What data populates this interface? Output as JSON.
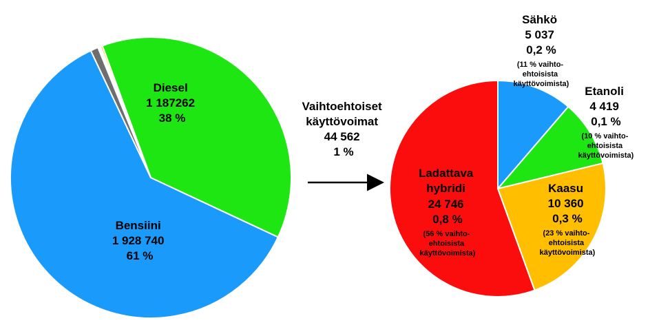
{
  "chart_data": [
    {
      "type": "pie",
      "slices": [
        {
          "name": "Bensiini",
          "value_text": "1 928 740",
          "pct_text": "61 %",
          "value": 1928740,
          "color": "#1a9bfc"
        },
        {
          "name": "Diesel",
          "value_text": "1 187262",
          "pct_text": "38 %",
          "value": 1187262,
          "color": "#1ee612"
        },
        {
          "name": "",
          "value": 7000,
          "color": "#ffd200"
        },
        {
          "name": "",
          "value": 5000,
          "color": "#ee1f8a"
        },
        {
          "name": "",
          "value": 5000,
          "color": "#c8c8c8"
        },
        {
          "name": "",
          "value": 28000,
          "color": "#6e6e6e"
        }
      ]
    },
    {
      "type": "pie",
      "title_lines": [
        "Vaihtoehtoiset",
        "käyttövoimat",
        "44 562",
        "1 %"
      ],
      "slices": [
        {
          "name": "Sähkö",
          "value_text": "5 037",
          "pct_text": "0,2 %",
          "note_lines": [
            "(11 % vaihto-",
            "ehtoisista",
            "käyttövoimista)"
          ],
          "value": 5037,
          "color": "#1a9bfc"
        },
        {
          "name": "Etanoli",
          "value_text": "4 419",
          "pct_text": "0,1 %",
          "note_lines": [
            "(10 % vaihto-",
            "ehtoisista",
            "käyttövoimista)"
          ],
          "value": 4419,
          "color": "#1ee612"
        },
        {
          "name": "Kaasu",
          "value_text": "10 360",
          "pct_text": "0,3 %",
          "note_lines": [
            "(23 % vaihto-",
            "ehtoisista",
            "käyttövoimista)"
          ],
          "value": 10360,
          "color": "#ffbf00"
        },
        {
          "name_lines": [
            "Ladattava",
            "hybridi"
          ],
          "value_text": "24 746",
          "pct_text": "0,8 %",
          "note_lines": [
            "(56 % vaihto-",
            "ehtoisista",
            "käyttövoimista)"
          ],
          "value": 24746,
          "color": "#fc0d0d"
        }
      ]
    }
  ]
}
